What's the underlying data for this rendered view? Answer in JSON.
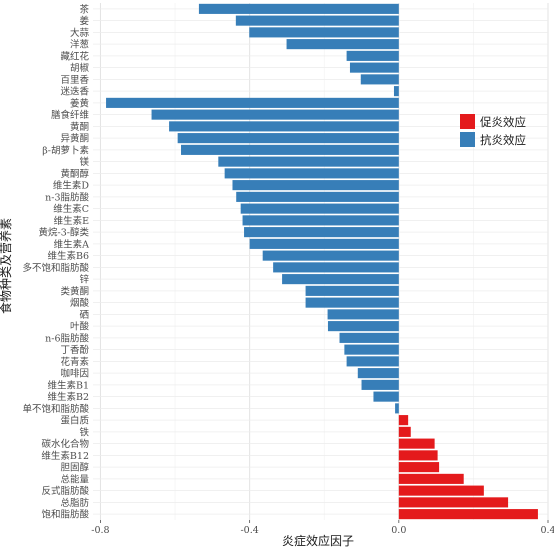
{
  "chart_data": {
    "type": "bar",
    "orientation": "horizontal",
    "xlabel": "炎症效应因子",
    "ylabel": "食物种类及营养素",
    "xlim": [
      -0.82,
      0.4
    ],
    "xticks": [
      -0.8,
      -0.4,
      0.0,
      0.4
    ],
    "xtick_labels": [
      "-0.8",
      "-0.4",
      "0.0",
      "0.4"
    ],
    "grid": true,
    "legend_position": "right",
    "series": [
      {
        "name": "促炎效应",
        "color": "#e41a1c"
      },
      {
        "name": "抗炎效应",
        "color": "#377eb8"
      }
    ],
    "categories": [
      "茶",
      "姜",
      "大蒜",
      "洋葱",
      "藏红花",
      "胡椒",
      "百里香",
      "迷迭香",
      "姜黄",
      "膳食纤维",
      "黄酮",
      "异黄酮",
      "β-胡萝卜素",
      "镁",
      "黄酮醇",
      "维生素D",
      "n-3脂肪酸",
      "维生素C",
      "维生素E",
      "黄烷-3-醇类",
      "维生素A",
      "维生素B6",
      "多不饱和脂肪酸",
      "锌",
      "类黄酮",
      "烟酸",
      "硒",
      "叶酸",
      "n-6脂肪酸",
      "丁香酚",
      "花青素",
      "咖啡因",
      "维生素B1",
      "维生素B2",
      "单不饱和脂肪酸",
      "蛋白质",
      "铁",
      "碳水化合物",
      "维生素B12",
      "胆固醇",
      "总能量",
      "反式脂肪酸",
      "总脂肪",
      "饱和脂肪酸"
    ],
    "values": [
      -0.536,
      -0.437,
      -0.401,
      -0.301,
      -0.14,
      -0.131,
      -0.102,
      -0.013,
      -0.785,
      -0.663,
      -0.616,
      -0.593,
      -0.584,
      -0.484,
      -0.467,
      -0.446,
      -0.436,
      -0.424,
      -0.419,
      -0.415,
      -0.4,
      -0.365,
      -0.337,
      -0.313,
      -0.25,
      -0.25,
      -0.191,
      -0.19,
      -0.159,
      -0.146,
      -0.14,
      -0.11,
      -0.1,
      -0.068,
      -0.01,
      0.025,
      0.032,
      0.096,
      0.104,
      0.108,
      0.174,
      0.228,
      0.293,
      0.373
    ],
    "effect": [
      "anti",
      "anti",
      "anti",
      "anti",
      "anti",
      "anti",
      "anti",
      "anti",
      "anti",
      "anti",
      "anti",
      "anti",
      "anti",
      "anti",
      "anti",
      "anti",
      "anti",
      "anti",
      "anti",
      "anti",
      "anti",
      "anti",
      "anti",
      "anti",
      "anti",
      "anti",
      "anti",
      "anti",
      "anti",
      "anti",
      "anti",
      "anti",
      "anti",
      "anti",
      "anti",
      "pro",
      "pro",
      "pro",
      "pro",
      "pro",
      "pro",
      "pro",
      "pro",
      "pro"
    ]
  }
}
